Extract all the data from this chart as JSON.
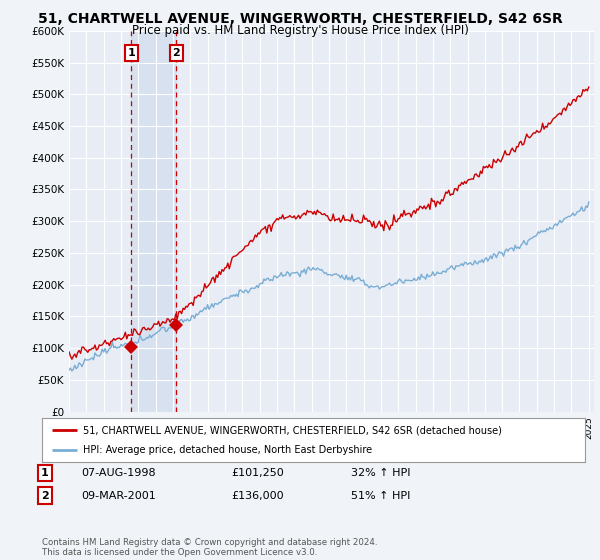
{
  "title": "51, CHARTWELL AVENUE, WINGERWORTH, CHESTERFIELD, S42 6SR",
  "subtitle": "Price paid vs. HM Land Registry's House Price Index (HPI)",
  "title_fontsize": 10,
  "subtitle_fontsize": 8.5,
  "background_color": "#f0f4f8",
  "plot_bg_color": "#e8edf5",
  "legend_label_red": "51, CHARTWELL AVENUE, WINGERWORTH, CHESTERFIELD, S42 6SR (detached house)",
  "legend_label_blue": "HPI: Average price, detached house, North East Derbyshire",
  "transaction1_date": 1998.59,
  "transaction1_label": "1",
  "transaction1_price": 101250,
  "transaction1_text": "07-AUG-1998",
  "transaction1_pct": "32% ↑ HPI",
  "transaction2_date": 2001.19,
  "transaction2_label": "2",
  "transaction2_price": 136000,
  "transaction2_text": "09-MAR-2001",
  "transaction2_pct": "51% ↑ HPI",
  "ylim": [
    0,
    600000
  ],
  "yticks": [
    0,
    50000,
    100000,
    150000,
    200000,
    250000,
    300000,
    350000,
    400000,
    450000,
    500000,
    550000,
    600000
  ],
  "ytick_labels": [
    "£0",
    "£50K",
    "£100K",
    "£150K",
    "£200K",
    "£250K",
    "£300K",
    "£350K",
    "£400K",
    "£450K",
    "£500K",
    "£550K",
    "£600K"
  ],
  "footer": "Contains HM Land Registry data © Crown copyright and database right 2024.\nThis data is licensed under the Open Government Licence v3.0.",
  "red_color": "#cc0000",
  "blue_color": "#7aadd4",
  "grid_color": "#ffffff",
  "shade_color": "#d0dcee"
}
